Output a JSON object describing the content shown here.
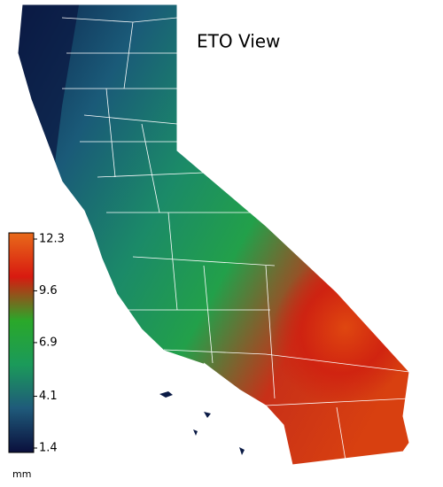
{
  "title": "ETO View",
  "legend": {
    "unit": "mm",
    "range": [
      1.4,
      12.3
    ],
    "ticks": [
      12.3,
      9.6,
      6.9,
      4.1,
      1.4
    ],
    "colors": [
      "#0a0f3c",
      "#1f5a7a",
      "#1b9a5a",
      "#2aa82a",
      "#d81a10",
      "#e86a1a"
    ]
  }
}
